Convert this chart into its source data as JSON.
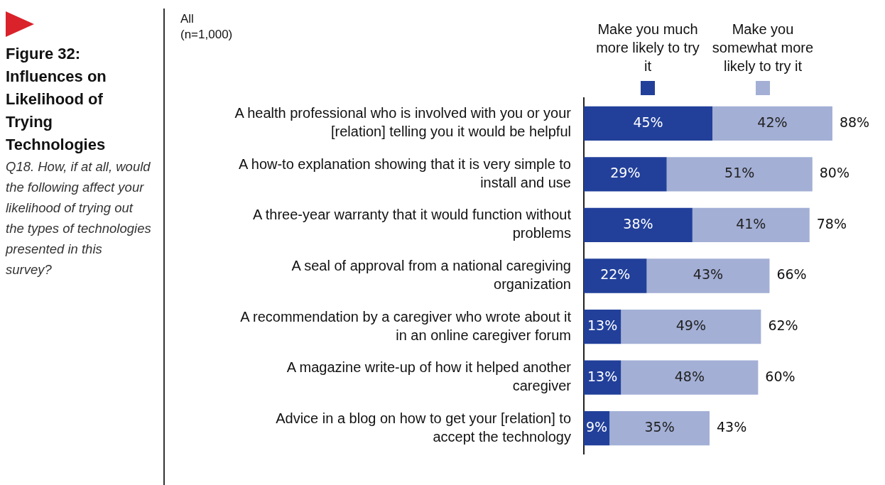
{
  "chart_data": {
    "type": "bar",
    "orientation": "horizontal",
    "stacked": true,
    "title": "Figure 32: Influences on Likelihood of Trying Technologies",
    "subtitle": "Q18. How, if at all, would the following affect your likelihood of trying out the types of technologies presented in this survey?",
    "annotations": [
      "All\n(n=1,000)"
    ],
    "categories": [
      "A health professional who is involved with you or your [relation] telling you it would be helpful",
      "A how-to explanation showing that it is very simple to install and use",
      "A three-year warranty that it would function without problems",
      "A seal of approval from a national caregiving organization",
      "A recommendation by a caregiver who wrote about it in an online caregiver forum",
      "A magazine write-up of how it helped another caregiver",
      "Advice in a blog on how to get your [relation] to accept the technology"
    ],
    "series": [
      {
        "name": "Make you much more likely to try it",
        "color": "#22409a",
        "values": [
          45,
          29,
          38,
          22,
          13,
          13,
          9
        ],
        "value_labels": [
          "45%",
          "29%",
          "38%",
          "22%",
          "13%",
          "13%",
          "9%"
        ]
      },
      {
        "name": "Make you somewhat more likely to try it",
        "color": "#a3afd5",
        "values": [
          42,
          51,
          41,
          43,
          49,
          48,
          35
        ],
        "value_labels": [
          "42%",
          "51%",
          "41%",
          "43%",
          "49%",
          "48%",
          "35%"
        ]
      }
    ],
    "totals": [
      "88%",
      "80%",
      "78%",
      "66%",
      "62%",
      "60%",
      "43%"
    ],
    "legend": "top",
    "tick_labels": "y",
    "grid": false
  }
}
